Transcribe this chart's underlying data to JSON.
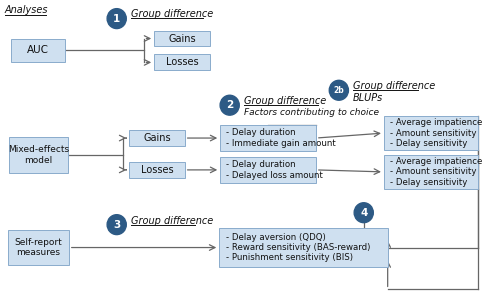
{
  "bg_color": "#ffffff",
  "box_fill": "#cfe0f0",
  "box_edge": "#8aabcc",
  "circle_fill": "#2d5a85",
  "circle_text_color": "#ffffff",
  "arrow_color": "#666666",
  "text_color": "#111111",
  "analyses_label": "Analyses",
  "auc_label": "AUC",
  "mixed_label": "Mixed-effects\nmodel",
  "selfreport_label": "Self-report\nmeasures",
  "c1": "1",
  "c2": "2",
  "c2b": "2b",
  "c3": "3",
  "c4": "4",
  "gd1": "Group difference",
  "gd2": "Group difference",
  "gd2_sub": "Factors contributing to choice",
  "gd2b": "Group difference",
  "gd2b_sub": "BLUPs",
  "gd3": "Group difference",
  "gains1": "Gains",
  "losses1": "Losses",
  "gains2": "Gains",
  "losses2": "Losses",
  "gfactors": "- Delay duration\n- Immediate gain amount",
  "lfactors": "- Delay duration\n- Delayed loss amount",
  "blups_g": "- Average impatience\n- Amount sensitivity\n- Delay sensitivity",
  "blups_l": "- Average impatience\n- Amount sensitivity\n- Delay sensitivity",
  "sr_items": "- Delay aversion (QDQ)\n- Reward sensitivity (BAS-reward)\n- Punishment sensitivity (BIS)",
  "figw": 5.0,
  "figh": 2.97,
  "dpi": 100
}
